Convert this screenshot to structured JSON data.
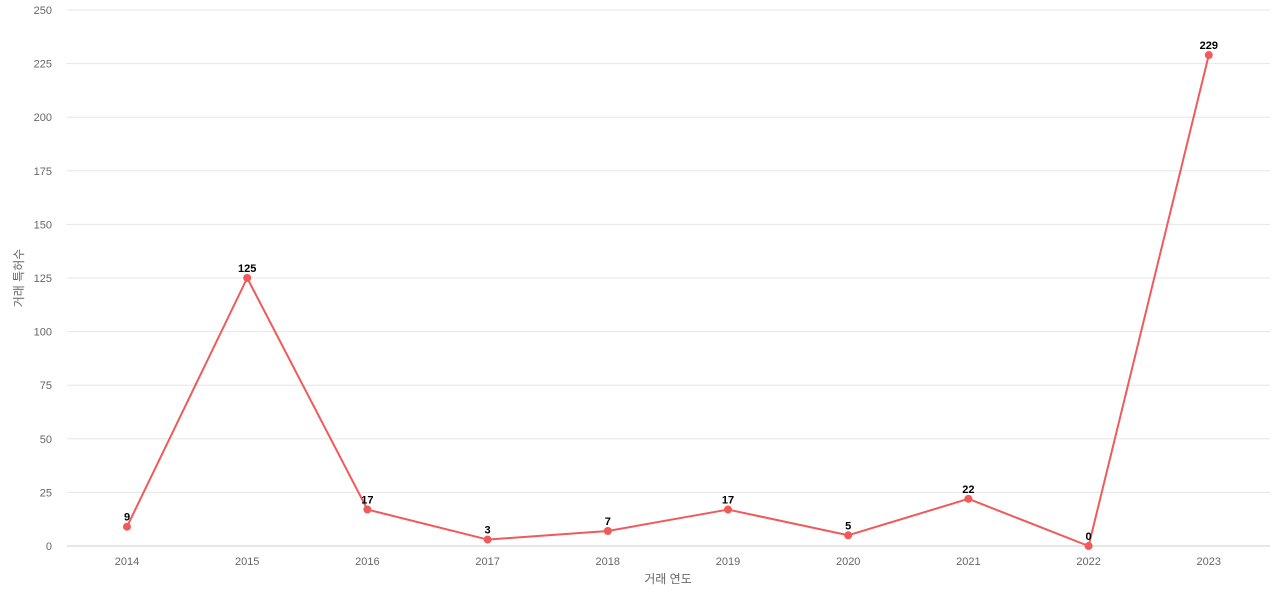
{
  "chart_data": {
    "type": "line",
    "title": "",
    "xlabel": "거래 연도",
    "ylabel": "거래 특허수",
    "categories": [
      "2014",
      "2015",
      "2016",
      "2017",
      "2018",
      "2019",
      "2020",
      "2021",
      "2022",
      "2023"
    ],
    "series": [
      {
        "values": [
          9,
          125,
          17,
          3,
          7,
          17,
          5,
          22,
          0,
          229
        ]
      }
    ],
    "ylim": [
      0,
      250
    ],
    "yticks": [
      0,
      25,
      50,
      75,
      100,
      125,
      150,
      175,
      200,
      225,
      250
    ],
    "grid": true,
    "legend": "none",
    "colors": {
      "line": "#f05a5a",
      "grid": "#e6e6e6",
      "tick_text": "#666666",
      "label_text": "#000000"
    }
  }
}
